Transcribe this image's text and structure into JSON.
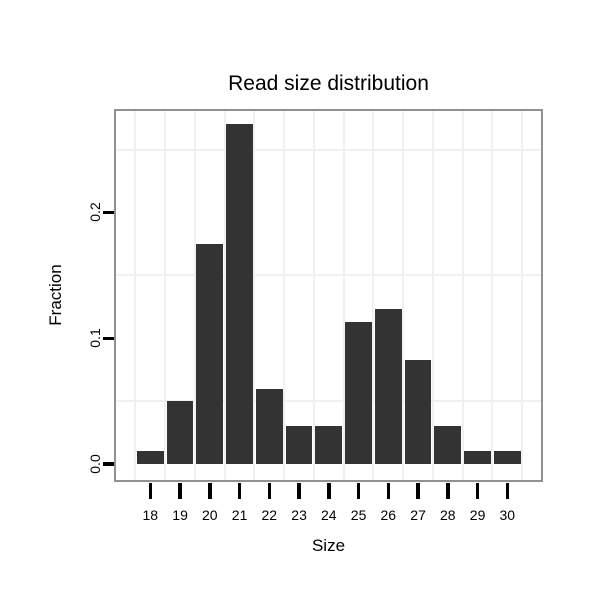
{
  "chart_data": {
    "type": "bar",
    "title": "Read size distribution",
    "xlabel": "Size",
    "ylabel": "Fraction",
    "categories": [
      "18",
      "19",
      "20",
      "21",
      "22",
      "23",
      "24",
      "25",
      "26",
      "27",
      "28",
      "29",
      "30"
    ],
    "values": [
      0.01,
      0.05,
      0.175,
      0.27,
      0.06,
      0.03,
      0.03,
      0.113,
      0.123,
      0.083,
      0.03,
      0.01,
      0.01
    ],
    "yticks": [
      0,
      0.1,
      0.2
    ],
    "ytick_labels": [
      "0.0",
      "0.1",
      "0.2"
    ],
    "minor_gridlines_y": [
      0.05,
      0.15,
      0.25
    ],
    "ylim": [
      -0.0127,
      0.2806
    ],
    "grid": "faint grey lines between category columns and midway between y ticks",
    "legend": "none",
    "bar_color": "#333333",
    "panel_border_color": "#919191",
    "gridline_color": "#f0f0f0",
    "tick_color": "#000000",
    "text_color": "#000000",
    "background_color": "#ffffff"
  }
}
